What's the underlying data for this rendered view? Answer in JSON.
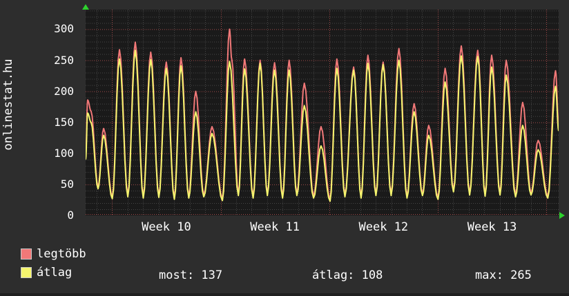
{
  "site_label": "onlinestat.hu",
  "legend": [
    {
      "label": "legtöbb",
      "color": "#f17878"
    },
    {
      "label": "átlag",
      "color": "#f4f46e"
    }
  ],
  "stats": [
    {
      "label": "most",
      "value": 137
    },
    {
      "label": "átlag",
      "value": 108
    },
    {
      "label": "max",
      "value": 265
    }
  ],
  "chart_data": {
    "type": "line",
    "title": "onlinestat.hu",
    "x_axis_labels": [
      "Week 10",
      "Week 11",
      "Week 12",
      "Week 13"
    ],
    "y_ticks": [
      0,
      50,
      100,
      150,
      200,
      250,
      300
    ],
    "ylim": [
      0,
      331
    ],
    "x_range_days": 30.5,
    "first_week_boundary_day": 1.706,
    "days_per_week": 7,
    "grid_on": true,
    "background_color": "#1a1a1a",
    "major_grid_color": "#a24a4a",
    "minor_grid_color": "#474747",
    "axis_arrow_color": "#2ed22e",
    "legend_position": "bottom-left",
    "series": [
      {
        "name": "legtöbb",
        "color": "#f17878",
        "points": [
          [
            0,
            93
          ],
          [
            0.13,
            186
          ],
          [
            0.35,
            168
          ],
          [
            0.8,
            46
          ],
          [
            1.16,
            140
          ],
          [
            1.72,
            30
          ],
          [
            2.18,
            267
          ],
          [
            2.72,
            33
          ],
          [
            3.2,
            279
          ],
          [
            3.72,
            31
          ],
          [
            4.2,
            263
          ],
          [
            4.72,
            32
          ],
          [
            5.2,
            247
          ],
          [
            5.72,
            29
          ],
          [
            6.15,
            254
          ],
          [
            6.65,
            31
          ],
          [
            7.1,
            200
          ],
          [
            7.62,
            33
          ],
          [
            8.15,
            143
          ],
          [
            8.82,
            27
          ],
          [
            9.28,
            300
          ],
          [
            9.42,
            252
          ],
          [
            9.85,
            35
          ],
          [
            10.25,
            252
          ],
          [
            10.8,
            31
          ],
          [
            11.25,
            250
          ],
          [
            11.72,
            35
          ],
          [
            12.18,
            246
          ],
          [
            12.7,
            31
          ],
          [
            13.12,
            250
          ],
          [
            13.62,
            35
          ],
          [
            14.1,
            213
          ],
          [
            14.7,
            31
          ],
          [
            15.18,
            143
          ],
          [
            15.76,
            26
          ],
          [
            16.2,
            252
          ],
          [
            16.72,
            33
          ],
          [
            17.28,
            239
          ],
          [
            17.76,
            31
          ],
          [
            18.2,
            258
          ],
          [
            18.72,
            35
          ],
          [
            19.18,
            247
          ],
          [
            19.7,
            35
          ],
          [
            20.2,
            269
          ],
          [
            20.72,
            31
          ],
          [
            21.18,
            180
          ],
          [
            21.72,
            35
          ],
          [
            22.12,
            145
          ],
          [
            22.72,
            29
          ],
          [
            23.18,
            237
          ],
          [
            23.72,
            41
          ],
          [
            24.22,
            273
          ],
          [
            24.76,
            36
          ],
          [
            25.28,
            266
          ],
          [
            25.76,
            34
          ],
          [
            26.18,
            258
          ],
          [
            26.72,
            36
          ],
          [
            27.12,
            250
          ],
          [
            27.72,
            33
          ],
          [
            28.18,
            182
          ],
          [
            28.72,
            36
          ],
          [
            29.18,
            121
          ],
          [
            29.8,
            31
          ],
          [
            30.3,
            233
          ],
          [
            30.5,
            147
          ]
        ]
      },
      {
        "name": "átlag",
        "color": "#f4f46e",
        "points": [
          [
            0,
            90
          ],
          [
            0.13,
            165
          ],
          [
            0.35,
            150
          ],
          [
            0.8,
            43
          ],
          [
            1.16,
            129
          ],
          [
            1.72,
            27
          ],
          [
            2.18,
            252
          ],
          [
            2.72,
            30
          ],
          [
            3.2,
            266
          ],
          [
            3.72,
            28
          ],
          [
            4.2,
            251
          ],
          [
            4.72,
            29
          ],
          [
            5.2,
            237
          ],
          [
            5.72,
            26
          ],
          [
            6.15,
            241
          ],
          [
            6.65,
            28
          ],
          [
            7.1,
            167
          ],
          [
            7.62,
            30
          ],
          [
            8.15,
            132
          ],
          [
            8.82,
            24
          ],
          [
            9.28,
            248
          ],
          [
            9.85,
            32
          ],
          [
            10.25,
            236
          ],
          [
            10.8,
            28
          ],
          [
            11.25,
            245
          ],
          [
            11.72,
            32
          ],
          [
            12.18,
            234
          ],
          [
            12.7,
            28
          ],
          [
            13.12,
            234
          ],
          [
            13.62,
            32
          ],
          [
            14.1,
            177
          ],
          [
            14.7,
            28
          ],
          [
            15.18,
            112
          ],
          [
            15.76,
            23
          ],
          [
            16.2,
            237
          ],
          [
            16.72,
            30
          ],
          [
            17.28,
            234
          ],
          [
            17.76,
            28
          ],
          [
            18.2,
            245
          ],
          [
            18.72,
            32
          ],
          [
            19.18,
            243
          ],
          [
            19.7,
            32
          ],
          [
            20.2,
            250
          ],
          [
            20.72,
            28
          ],
          [
            21.18,
            167
          ],
          [
            21.72,
            32
          ],
          [
            22.12,
            129
          ],
          [
            22.72,
            26
          ],
          [
            23.18,
            215
          ],
          [
            23.72,
            38
          ],
          [
            24.22,
            257
          ],
          [
            24.76,
            33
          ],
          [
            25.28,
            256
          ],
          [
            25.76,
            31
          ],
          [
            26.18,
            239
          ],
          [
            26.72,
            33
          ],
          [
            27.12,
            226
          ],
          [
            27.72,
            30
          ],
          [
            28.18,
            145
          ],
          [
            28.72,
            33
          ],
          [
            29.18,
            106
          ],
          [
            29.8,
            28
          ],
          [
            30.3,
            208
          ],
          [
            30.5,
            136
          ]
        ]
      }
    ]
  }
}
